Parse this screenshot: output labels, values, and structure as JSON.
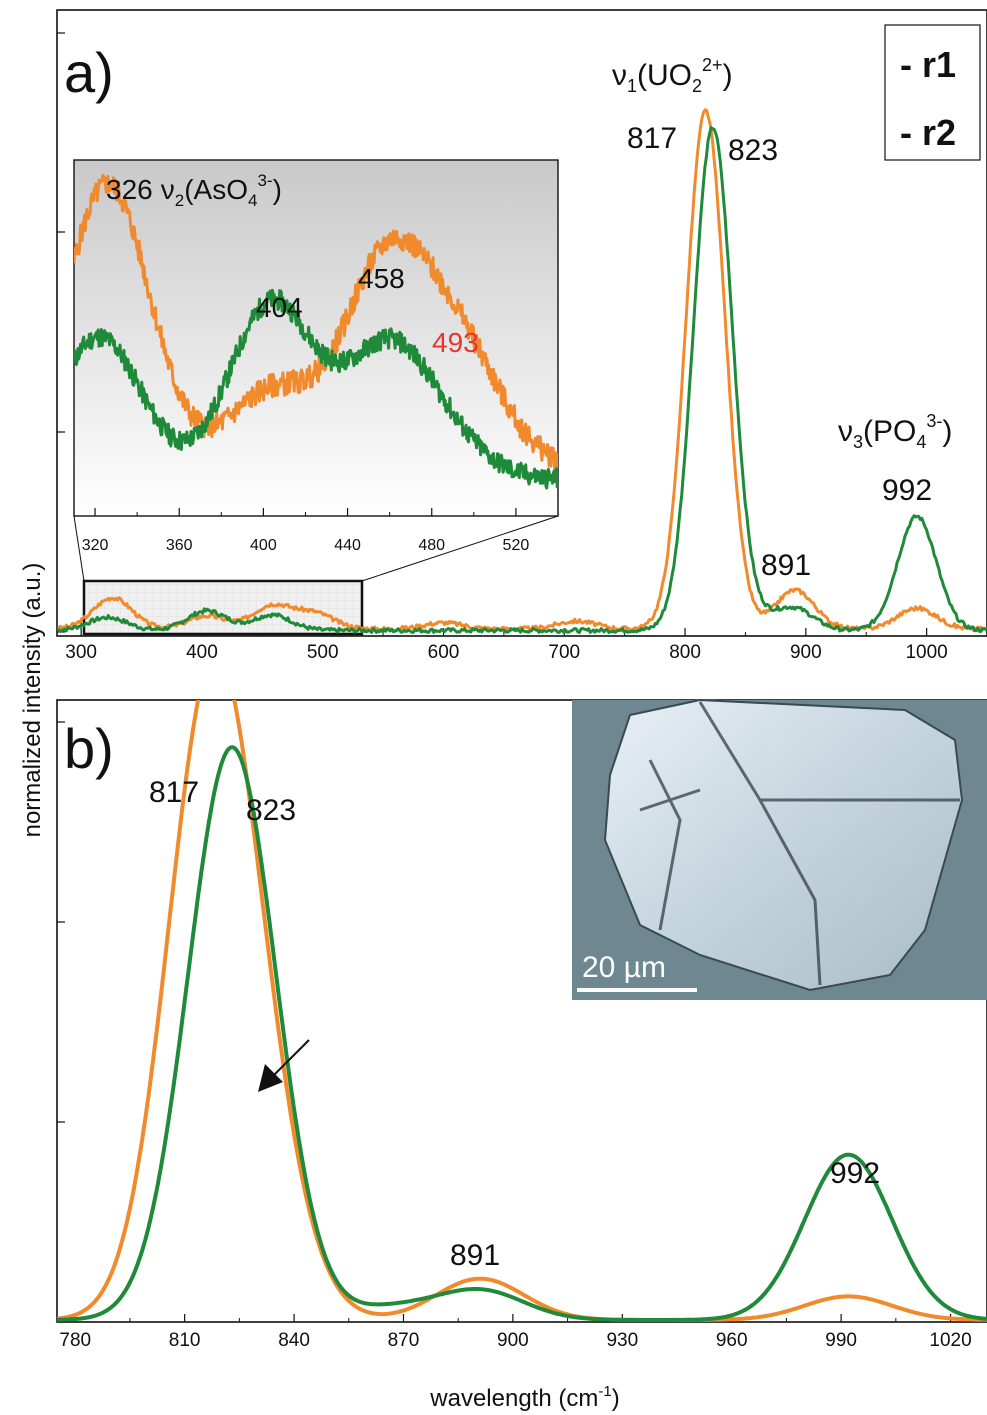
{
  "colors": {
    "r1": "#f08a2c",
    "r2": "#1f8a3a",
    "highlight": "#e8352e"
  },
  "axis_titles": {
    "y": "normalized intensity (a.u.)",
    "x_prefix": "wavelength (cm",
    "x_sup": "-1",
    "x_suffix": ")"
  },
  "legend": [
    {
      "label": "- r1",
      "color": "#f08a2c"
    },
    {
      "label": "- r2",
      "color": "#1f8a3a"
    }
  ],
  "panel_a": {
    "label": "a)",
    "peak_817": "817",
    "peak_823": "823",
    "peak_891": "891",
    "peak_992": "992",
    "band_uo2": {
      "nu": "ν",
      "sub1": "1",
      "open": "(UO",
      "sub2": "2",
      "sup": "2+",
      "close": ")"
    },
    "band_po4": {
      "nu": "ν",
      "sub1": "3",
      "open": "(PO",
      "sub2": "4",
      "sup": "3-",
      "close": ")"
    }
  },
  "inset_a": {
    "peak_326": "326",
    "band_aso4": {
      "nu": "ν",
      "sub1": "2",
      "open": "(AsO",
      "sub2": "4",
      "sup": "3-",
      "close": ")"
    },
    "peak_404": "404",
    "peak_458": "458",
    "peak_493": "493"
  },
  "panel_b": {
    "label": "b)",
    "peak_817": "817",
    "peak_823": "823",
    "peak_891": "891",
    "peak_992": "992"
  },
  "micrograph": {
    "scale_label": "20 µm"
  },
  "chart_data": [
    {
      "type": "line",
      "panel": "a",
      "xlim": [
        280,
        1050
      ],
      "ylim": [
        0,
        1.2
      ],
      "x_ticks": [
        300,
        400,
        500,
        600,
        700,
        800,
        900,
        1000
      ],
      "series": [
        {
          "name": "r1",
          "color": "#f08a2c",
          "peaks": [
            [
              326,
              0.06
            ],
            [
              404,
              0.025
            ],
            [
              458,
              0.045
            ],
            [
              493,
              0.03
            ],
            [
              600,
              0.012
            ],
            [
              710,
              0.015
            ],
            [
              817,
              1.0
            ],
            [
              891,
              0.075
            ],
            [
              992,
              0.04
            ]
          ]
        },
        {
          "name": "r2",
          "color": "#1f8a3a",
          "peaks": [
            [
              322,
              0.025
            ],
            [
              404,
              0.038
            ],
            [
              458,
              0.03
            ],
            [
              823,
              0.97
            ],
            [
              866,
              0.015
            ],
            [
              891,
              0.04
            ],
            [
              992,
              0.22
            ]
          ]
        }
      ]
    },
    {
      "type": "line",
      "panel": "a-inset",
      "xlim": [
        310,
        540
      ],
      "ylim": [
        0,
        1.0
      ],
      "x_ticks": [
        320,
        360,
        400,
        440,
        480,
        520
      ],
      "series": [
        {
          "name": "r1",
          "color": "#f08a2c",
          "peaks": [
            [
              326,
              0.83
            ],
            [
              404,
              0.22
            ],
            [
              458,
              0.58
            ],
            [
              493,
              0.33
            ]
          ]
        },
        {
          "name": "r2",
          "color": "#1f8a3a",
          "peaks": [
            [
              322,
              0.42
            ],
            [
              404,
              0.52
            ],
            [
              458,
              0.36
            ],
            [
              485,
              0.1
            ]
          ]
        }
      ]
    },
    {
      "type": "line",
      "panel": "b",
      "xlim": [
        775,
        1030
      ],
      "ylim": [
        0,
        1.05
      ],
      "x_ticks": [
        780,
        810,
        840,
        870,
        900,
        930,
        960,
        990,
        1020
      ],
      "series": [
        {
          "name": "r1",
          "color": "#f08a2c",
          "peaks": [
            [
              817,
              1.0
            ],
            [
              830,
              0.22
            ],
            [
              891,
              0.07
            ],
            [
              992,
              0.04
            ]
          ]
        },
        {
          "name": "r2",
          "color": "#1f8a3a",
          "peaks": [
            [
              823,
              0.97
            ],
            [
              866,
              0.02
            ],
            [
              891,
              0.05
            ],
            [
              992,
              0.28
            ]
          ]
        }
      ]
    }
  ]
}
